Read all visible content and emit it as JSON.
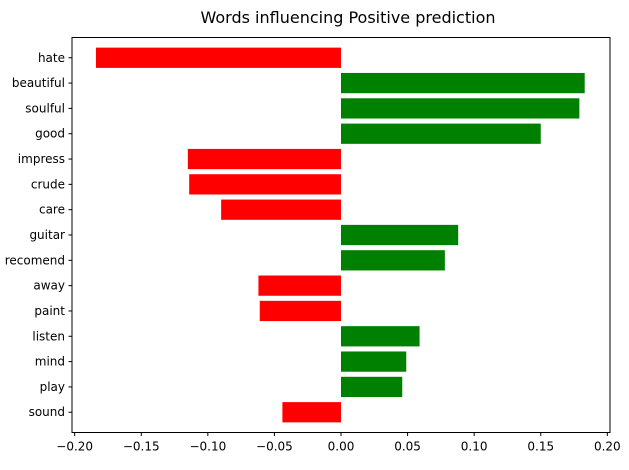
{
  "chart_data": {
    "type": "bar",
    "orientation": "horizontal",
    "title": "Words influencing Positive prediction",
    "xlabel": "",
    "ylabel": "",
    "xlim": [
      -0.202,
      0.202
    ],
    "xticks": [
      -0.2,
      -0.15,
      -0.1,
      -0.05,
      0.0,
      0.05,
      0.1,
      0.15,
      0.2
    ],
    "xtick_labels": [
      "−0.20",
      "−0.15",
      "−0.10",
      "−0.05",
      "0.00",
      "0.05",
      "0.10",
      "0.15",
      "0.20"
    ],
    "grid": false,
    "legend": "none",
    "colors": {
      "positive": "#008000",
      "negative": "#ff0000",
      "axes": "#000000"
    },
    "categories": [
      "hate",
      "beautiful",
      "soulful",
      "good",
      "impress",
      "crude",
      "care",
      "guitar",
      "recomend",
      "away",
      "paint",
      "listen",
      "mind",
      "play",
      "sound"
    ],
    "values": [
      -0.184,
      0.183,
      0.179,
      0.15,
      -0.115,
      -0.114,
      -0.09,
      0.088,
      0.078,
      -0.062,
      -0.061,
      0.059,
      0.049,
      0.046,
      -0.044
    ]
  }
}
